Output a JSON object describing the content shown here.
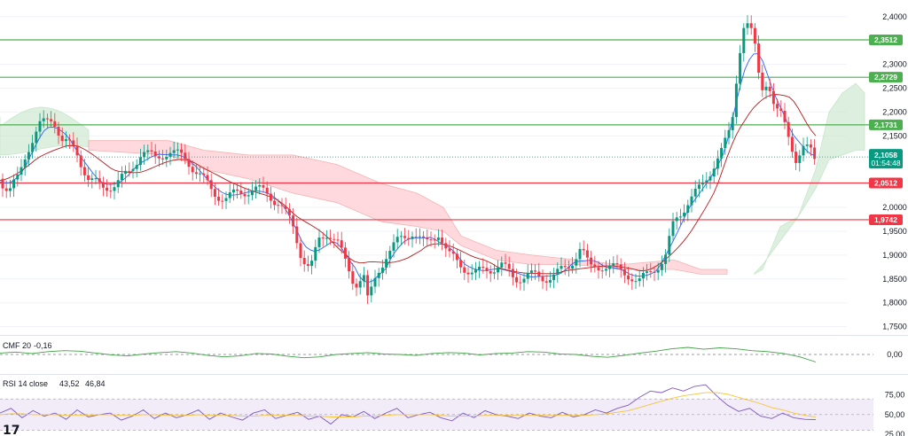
{
  "chart_data": [
    {
      "type": "candlestick",
      "title": "",
      "y_ticks": [
        "2,4000",
        "2,3000",
        "2,2500",
        "2,2000",
        "2,1500",
        "2,0000",
        "1,9500",
        "1,9000",
        "1,8500",
        "1,8000",
        "1,7500"
      ],
      "ylim": [
        1.74,
        2.42
      ],
      "horizontal_levels": [
        {
          "value": 2.3512,
          "label": "2,3512",
          "color": "#4caf50"
        },
        {
          "value": 2.2729,
          "label": "2,2729",
          "color": "#4caf50"
        },
        {
          "value": 2.1731,
          "label": "2,1731",
          "color": "#4caf50"
        },
        {
          "value": 2.0512,
          "label": "2,0512",
          "color": "#f23645"
        },
        {
          "value": 1.9742,
          "label": "1,9742",
          "color": "#f23645"
        }
      ],
      "current_price": {
        "value": 2.1058,
        "label": "2,1058",
        "countdown": "01:54:48",
        "color": "#089981"
      },
      "close_path": [
        [
          0,
          2.06
        ],
        [
          10,
          2.03
        ],
        [
          20,
          2.06
        ],
        [
          30,
          2.12
        ],
        [
          45,
          2.17
        ],
        [
          60,
          2.19
        ],
        [
          70,
          2.14
        ],
        [
          85,
          2.12
        ],
        [
          100,
          2.06
        ],
        [
          115,
          2.04
        ],
        [
          130,
          2.05
        ],
        [
          145,
          2.07
        ],
        [
          160,
          2.12
        ],
        [
          175,
          2.1
        ],
        [
          190,
          2.12
        ],
        [
          200,
          2.11
        ],
        [
          210,
          2.1
        ],
        [
          225,
          2.07
        ],
        [
          240,
          2.03
        ],
        [
          255,
          2.02
        ],
        [
          270,
          2.03
        ],
        [
          285,
          2.04
        ],
        [
          300,
          2.03
        ],
        [
          315,
          2.01
        ],
        [
          330,
          1.96
        ],
        [
          340,
          1.9
        ],
        [
          350,
          1.87
        ],
        [
          360,
          1.93
        ],
        [
          370,
          1.95
        ],
        [
          380,
          1.93
        ],
        [
          390,
          1.88
        ],
        [
          400,
          1.84
        ],
        [
          410,
          1.86
        ],
        [
          415,
          1.8
        ],
        [
          425,
          1.86
        ],
        [
          435,
          1.9
        ],
        [
          450,
          1.93
        ],
        [
          465,
          1.95
        ],
        [
          480,
          1.92
        ],
        [
          495,
          1.95
        ],
        [
          505,
          1.9
        ],
        [
          520,
          1.88
        ],
        [
          535,
          1.86
        ],
        [
          550,
          1.87
        ],
        [
          565,
          1.88
        ],
        [
          580,
          1.85
        ],
        [
          595,
          1.86
        ],
        [
          610,
          1.85
        ],
        [
          625,
          1.86
        ],
        [
          640,
          1.87
        ],
        [
          655,
          1.92
        ],
        [
          665,
          1.87
        ],
        [
          680,
          1.88
        ],
        [
          695,
          1.87
        ],
        [
          710,
          1.86
        ],
        [
          720,
          1.84
        ],
        [
          735,
          1.87
        ],
        [
          750,
          1.89
        ],
        [
          760,
          1.97
        ],
        [
          775,
          2.01
        ],
        [
          790,
          2.04
        ],
        [
          805,
          2.09
        ],
        [
          815,
          2.12
        ],
        [
          825,
          2.17
        ],
        [
          832,
          2.3
        ],
        [
          838,
          2.38
        ],
        [
          845,
          2.38
        ],
        [
          852,
          2.33
        ],
        [
          858,
          2.25
        ],
        [
          866,
          2.27
        ],
        [
          874,
          2.2
        ],
        [
          882,
          2.19
        ],
        [
          890,
          2.15
        ],
        [
          898,
          2.1
        ],
        [
          906,
          2.12
        ],
        [
          914,
          2.12
        ],
        [
          920,
          2.1
        ]
      ],
      "series": [
        {
          "name": "conversion line",
          "color": "#2962ff"
        },
        {
          "name": "base line",
          "color": "#b71c1c"
        }
      ]
    },
    {
      "type": "line",
      "indicator": "CMF 20",
      "value_label": "-0,16",
      "value_color": "#43a047",
      "y_ticks": [
        "0,00"
      ],
      "ylim": [
        -0.3,
        0.3
      ],
      "zero_line": true,
      "series": [
        {
          "color": "#43a047",
          "values": [
            0.03,
            0.05,
            0.02,
            0.06,
            0.08,
            0.07,
            0.03,
            -0.01,
            -0.03,
            0.01,
            0.04,
            0.06,
            0.03,
            -0.02,
            -0.05,
            -0.03,
            0.02,
            0.01,
            -0.04,
            -0.07,
            -0.05,
            0.0,
            0.02,
            0.04,
            0.01,
            0.0,
            -0.02,
            0.02,
            0.04,
            0.03,
            -0.01,
            0.02,
            0.03,
            0.06,
            0.05,
            0.01,
            0.0,
            -0.04,
            -0.06,
            -0.02,
            0.03,
            0.07,
            0.12,
            0.15,
            0.11,
            0.14,
            0.12,
            0.08,
            0.06,
            0.02,
            -0.05,
            -0.16
          ]
        }
      ]
    },
    {
      "type": "line",
      "indicator": "RSI 14 close",
      "value_label": "43,52",
      "value_label_2": "46,84",
      "value_color": "#7e57c2",
      "value_color_2": "#f7c33b",
      "y_ticks": [
        "75,00",
        "50,00",
        "25,00"
      ],
      "ylim": [
        25,
        95
      ],
      "overbought": 70,
      "oversold": 30,
      "series": [
        {
          "name": "RSI",
          "color": "#7e57c2",
          "values": [
            52,
            58,
            46,
            55,
            48,
            52,
            44,
            56,
            47,
            50,
            52,
            43,
            48,
            56,
            45,
            52,
            46,
            50,
            56,
            44,
            52,
            47,
            43,
            52,
            56,
            45,
            49,
            53,
            44,
            48,
            38,
            50,
            47,
            54,
            45,
            52,
            58,
            46,
            50,
            53,
            46,
            42,
            52,
            46,
            55,
            50,
            48,
            45,
            52,
            48,
            46,
            53,
            47,
            50,
            56,
            52,
            58,
            62,
            72,
            80,
            78,
            84,
            80,
            86,
            88,
            74,
            62,
            54,
            58,
            48,
            45,
            52,
            46,
            44,
            43.5
          ]
        },
        {
          "name": "RSI-based MA",
          "color": "#f7c33b",
          "values": [
            50,
            51,
            51,
            50,
            50,
            50,
            49,
            49,
            49,
            50,
            50,
            49,
            49,
            50,
            50,
            49,
            49,
            49,
            50,
            49,
            49,
            49,
            48,
            48,
            49,
            49,
            49,
            49,
            48,
            48,
            47,
            47,
            47,
            48,
            48,
            49,
            50,
            50,
            50,
            50,
            49,
            48,
            48,
            48,
            49,
            49,
            49,
            49,
            49,
            49,
            49,
            49,
            49,
            49,
            50,
            51,
            53,
            55,
            59,
            63,
            67,
            71,
            74,
            76,
            78,
            78,
            76,
            72,
            68,
            64,
            59,
            56,
            52,
            49,
            46.84
          ]
        }
      ]
    }
  ],
  "logo": {
    "text": "17"
  },
  "colors": {
    "grid": "#f0f3fa",
    "bull": "#089981",
    "bear": "#f23645",
    "cloud_bull": "#c8e6c9",
    "cloud_bear": "#ffcdd2",
    "rsi_band": "#ede7f6"
  }
}
